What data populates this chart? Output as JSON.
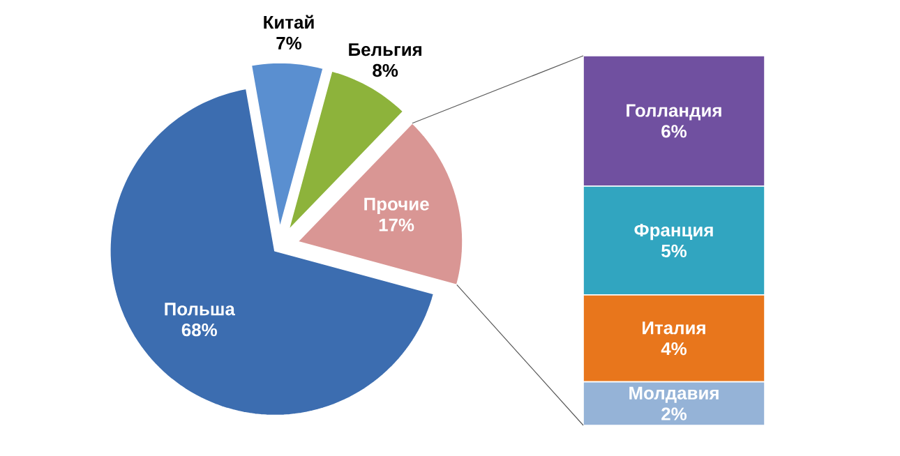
{
  "chart_data": [
    {
      "type": "pie",
      "categories": [
        "Польша",
        "Китай",
        "Бельгия",
        "Прочие"
      ],
      "values": [
        68,
        7,
        8,
        17
      ],
      "value_labels": [
        "68%",
        "7%",
        "8%",
        "17%"
      ],
      "colors": [
        "#3c6db0",
        "#5a8fd0",
        "#8db33b",
        "#d99694"
      ]
    },
    {
      "type": "bar",
      "stacked": true,
      "categories": [
        null
      ],
      "series": [
        {
          "name": "Молдавия",
          "color": "#95b3d7",
          "values": [
            2
          ],
          "value_labels": [
            "2%"
          ]
        },
        {
          "name": "Италия",
          "color": "#e8761c",
          "values": [
            4
          ],
          "value_labels": [
            "4%"
          ]
        },
        {
          "name": "Франция",
          "color": "#31a5c0",
          "values": [
            5
          ],
          "value_labels": [
            "5%"
          ]
        },
        {
          "name": "Голландия",
          "color": "#7050a0",
          "values": [
            6
          ],
          "value_labels": [
            "6%"
          ]
        }
      ]
    }
  ]
}
